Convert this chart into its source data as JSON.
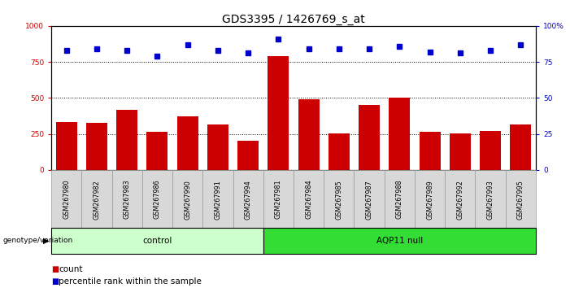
{
  "title": "GDS3395 / 1426769_s_at",
  "samples": [
    "GSM267980",
    "GSM267982",
    "GSM267983",
    "GSM267986",
    "GSM267990",
    "GSM267991",
    "GSM267994",
    "GSM267981",
    "GSM267984",
    "GSM267985",
    "GSM267987",
    "GSM267988",
    "GSM267989",
    "GSM267992",
    "GSM267993",
    "GSM267995"
  ],
  "counts": [
    335,
    325,
    420,
    265,
    370,
    315,
    205,
    790,
    490,
    255,
    450,
    500,
    265,
    255,
    270,
    315
  ],
  "percentiles": [
    83,
    84,
    83,
    79,
    87,
    83,
    81,
    91,
    84,
    84,
    84,
    86,
    82,
    81,
    83,
    87
  ],
  "n_control": 7,
  "n_aqp11": 9,
  "bar_color": "#cc0000",
  "dot_color": "#0000cc",
  "control_bg": "#ccffcc",
  "aqp11_bg": "#33dd33",
  "ylim_left": [
    0,
    1000
  ],
  "ylim_right": [
    0,
    100
  ],
  "yticks_left": [
    0,
    250,
    500,
    750,
    1000
  ],
  "yticks_right": [
    0,
    25,
    50,
    75,
    100
  ],
  "grid_vals": [
    250,
    500,
    750
  ],
  "bar_width": 0.7,
  "fig_width": 7.01,
  "fig_height": 3.54,
  "title_fontsize": 10,
  "tick_fontsize": 6.5,
  "legend_fontsize": 7.5,
  "ylabel_left_color": "#cc0000",
  "ylabel_right_color": "#0000cc"
}
